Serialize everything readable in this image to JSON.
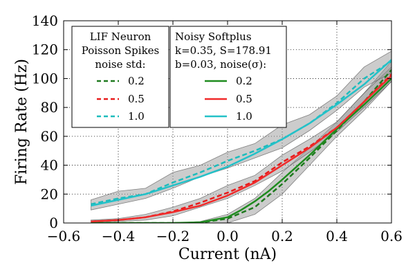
{
  "chart_data": {
    "type": "line",
    "xlabel": "Current (nA)",
    "ylabel": "Firing Rate (Hz)",
    "xlim": [
      -0.6,
      0.6
    ],
    "ylim": [
      0,
      140
    ],
    "xticks": [
      -0.6,
      -0.4,
      -0.2,
      0.0,
      0.2,
      0.4,
      0.6
    ],
    "xtick_labels": [
      "−0.6",
      "−0.4",
      "−0.2",
      "0.0",
      "0.2",
      "0.4",
      "0.6"
    ],
    "yticks": [
      0,
      20,
      40,
      60,
      80,
      100,
      120,
      140
    ],
    "ytick_labels": [
      "0",
      "20",
      "40",
      "60",
      "80",
      "100",
      "120",
      "140"
    ],
    "grid": true,
    "legends": [
      {
        "placement": "top-left",
        "title_lines": [
          "LIF Neuron",
          "Poisson Spikes",
          "noise std:"
        ],
        "entries": [
          {
            "label": "0.2",
            "color": "#1f7a1f",
            "dash": "dashed"
          },
          {
            "label": "0.5",
            "color": "#e81b1b",
            "dash": "dashed"
          },
          {
            "label": "1.0",
            "color": "#1cbcbc",
            "dash": "dashed"
          }
        ]
      },
      {
        "placement": "top-center",
        "title_lines": [
          "Noisy Softplus",
          "k=0.35, S=178.91",
          "b=0.03, noise(σ):"
        ],
        "entries": [
          {
            "label": "0.2",
            "color": "#1f8c1f",
            "dash": "solid"
          },
          {
            "label": "0.5",
            "color": "#f02a2a",
            "dash": "solid"
          },
          {
            "label": "1.0",
            "color": "#24c1c8",
            "dash": "solid"
          }
        ]
      }
    ],
    "series": [
      {
        "color": "#1f7a1f",
        "dash": "dashed",
        "kind": "lif",
        "x": [
          -0.5,
          -0.4,
          -0.3,
          -0.2,
          -0.1,
          0.0,
          0.1,
          0.2,
          0.3,
          0.4,
          0.5,
          0.6
        ],
        "y": [
          0,
          0,
          0,
          0,
          0.2,
          3,
          11,
          27,
          45,
          64,
          84,
          106
        ],
        "lower": [
          0,
          0,
          0,
          0,
          0,
          0,
          6,
          20,
          40,
          60,
          78,
          98
        ],
        "upper": [
          0,
          0,
          0,
          0,
          1,
          6,
          17,
          35,
          52,
          70,
          90,
          112
        ]
      },
      {
        "color": "#e81b1b",
        "dash": "dashed",
        "kind": "lif",
        "x": [
          -0.5,
          -0.4,
          -0.3,
          -0.2,
          -0.1,
          0.0,
          0.1,
          0.2,
          0.3,
          0.4,
          0.5,
          0.6
        ],
        "y": [
          1,
          2,
          4,
          8,
          14,
          21,
          29,
          42,
          53,
          66,
          84,
          103
        ],
        "lower": [
          0.5,
          1,
          2,
          5,
          11,
          17,
          26,
          36,
          49,
          63,
          80,
          98
        ],
        "upper": [
          2,
          3,
          6,
          11,
          17,
          26,
          33,
          47,
          58,
          70,
          90,
          108
        ]
      },
      {
        "color": "#1cbcbc",
        "dash": "dashed",
        "kind": "lif",
        "x": [
          -0.5,
          -0.4,
          -0.3,
          -0.2,
          -0.1,
          0.0,
          0.1,
          0.2,
          0.3,
          0.4,
          0.5,
          0.6
        ],
        "y": [
          13,
          17,
          20,
          28,
          35,
          43,
          50,
          58,
          69,
          83,
          100,
          112
        ],
        "lower": [
          9,
          13,
          17,
          24,
          32,
          38,
          45,
          52,
          64,
          78,
          94,
          104
        ],
        "upper": [
          16,
          22,
          24,
          35,
          40,
          49,
          55,
          68,
          75,
          88,
          108,
          119
        ]
      },
      {
        "color": "#1f8c1f",
        "dash": "solid",
        "kind": "softplus",
        "x": [
          -0.5,
          -0.4,
          -0.3,
          -0.2,
          -0.1,
          0.0,
          0.05,
          0.1,
          0.15,
          0.2,
          0.25,
          0.3,
          0.35,
          0.4,
          0.45,
          0.5,
          0.55,
          0.6
        ],
        "y": [
          0,
          0,
          0,
          0,
          0.5,
          4,
          9,
          15,
          22,
          30,
          38.5,
          47,
          56,
          65,
          73.5,
          82,
          91,
          100
        ]
      },
      {
        "color": "#f02a2a",
        "dash": "solid",
        "kind": "softplus",
        "x": [
          -0.5,
          -0.4,
          -0.3,
          -0.2,
          -0.1,
          0.0,
          0.1,
          0.2,
          0.3,
          0.4,
          0.5,
          0.6
        ],
        "y": [
          1,
          2,
          4,
          7.5,
          12,
          19,
          28,
          40,
          52,
          66,
          84,
          102
        ]
      },
      {
        "color": "#24c1c8",
        "dash": "solid",
        "kind": "softplus",
        "x": [
          -0.5,
          -0.4,
          -0.3,
          -0.2,
          -0.1,
          0.0,
          0.1,
          0.2,
          0.3,
          0.4,
          0.5,
          0.6
        ],
        "y": [
          12,
          16,
          20,
          26,
          32,
          39,
          48,
          58,
          69,
          82,
          96,
          113
        ]
      }
    ]
  }
}
